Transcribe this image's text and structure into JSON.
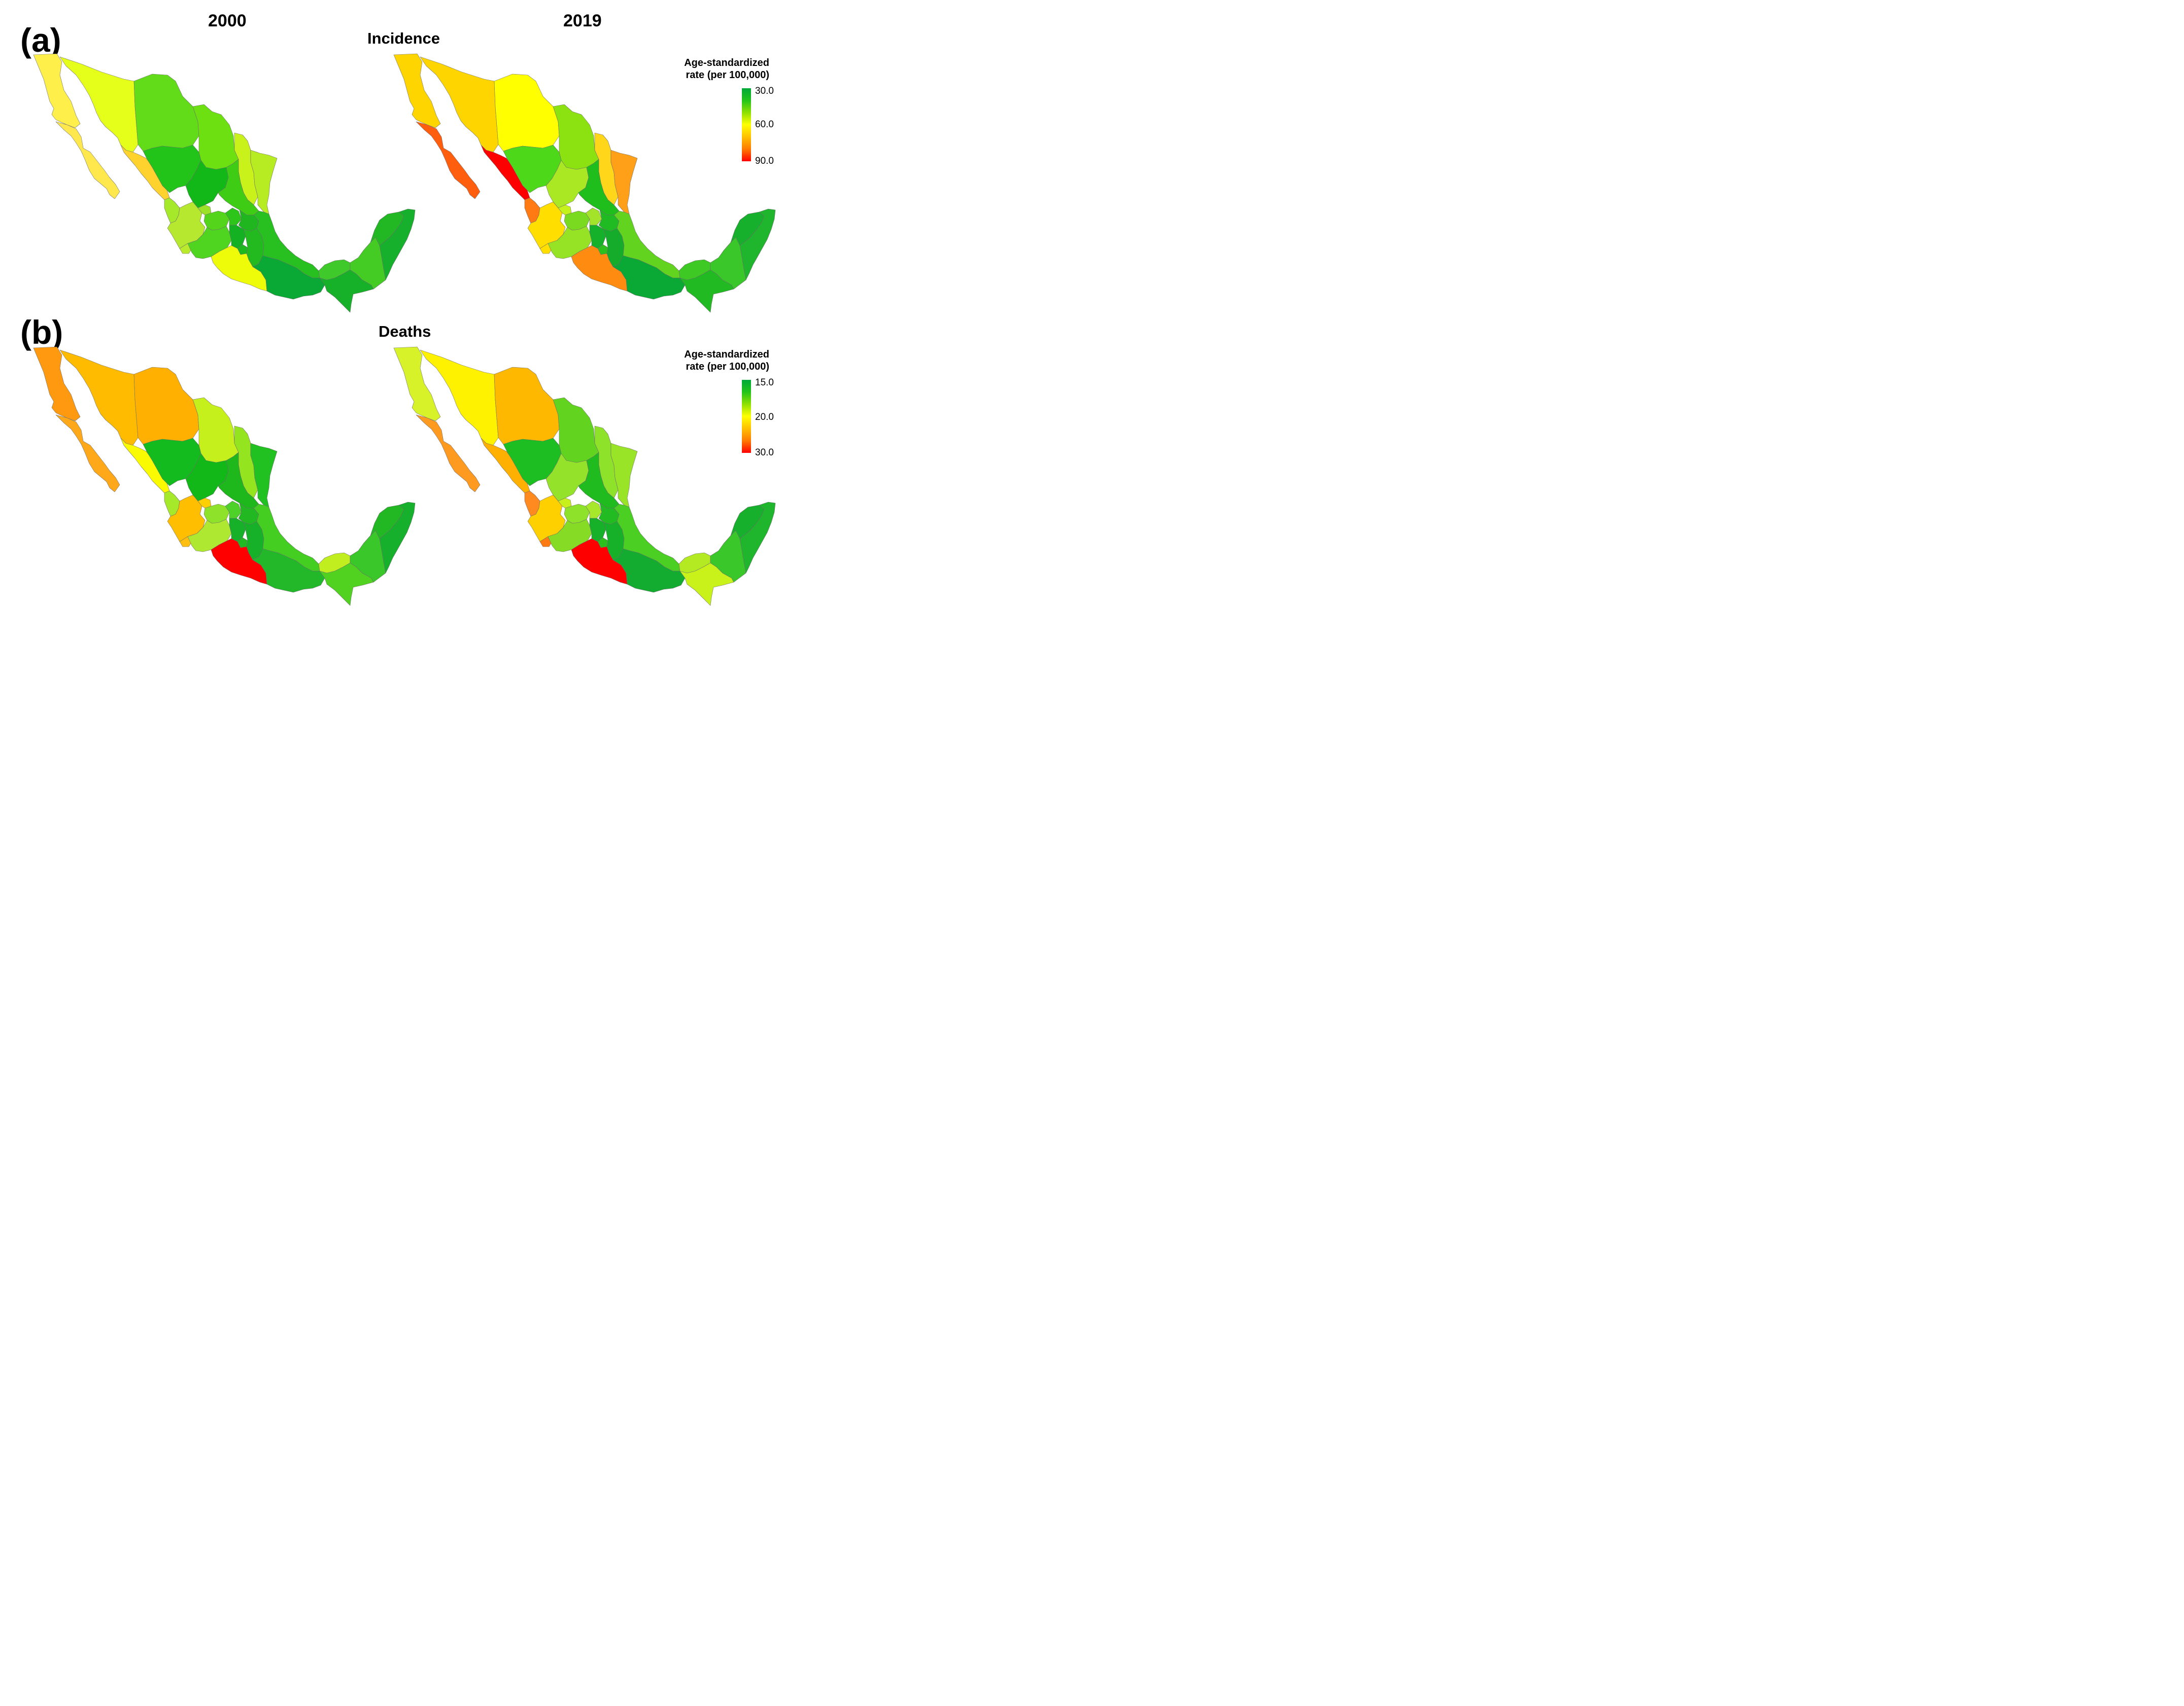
{
  "panels": [
    {
      "label": "(a)",
      "title": "Incidence"
    },
    {
      "label": "(b)",
      "title": "Deaths"
    }
  ],
  "years": [
    "2000",
    "2019"
  ],
  "legends": [
    {
      "title_line1": "Age-standardized",
      "title_line2": "rate (per 100,000)",
      "ticks": [
        "30.0",
        "60.0",
        "90.0"
      ],
      "gradient": [
        "#00a83a",
        "#22c41a",
        "#8ee000",
        "#ffff00",
        "#ffc000",
        "#ff7a00",
        "#ff0000"
      ]
    },
    {
      "title_line1": "Age-standardized",
      "title_line2": "rate (per 100,000)",
      "ticks": [
        "15.0",
        "20.0",
        "30.0"
      ],
      "gradient": [
        "#00a83a",
        "#22c41a",
        "#8ee000",
        "#ffff00",
        "#ffc000",
        "#ff7a00",
        "#ff0000"
      ]
    }
  ],
  "maps": [
    {
      "measure": "Incidence",
      "year": "2000",
      "colors": {
        "baja_california": "#ffef4a",
        "baja_california_sur": "#ffe84d",
        "sonora": "#e6ff1a",
        "chihuahua": "#62dc18",
        "coahuila": "#6ce010",
        "nuevo_leon": "#c8f21a",
        "tamaulipas": "#b8ec22",
        "sinaloa": "#ffd22d",
        "durango": "#22c41a",
        "zacatecas": "#11b817",
        "san_luis_potosi": "#3ecd14",
        "nayarit": "#a6e82a",
        "jalisco": "#b6e830",
        "aguascalientes": "#9de228",
        "guanajuato": "#55d41c",
        "queretaro": "#2ec51a",
        "hidalgo": "#1fb61f",
        "colima": "#b9ea2c",
        "michoacan": "#4fd420",
        "mexico": "#14b222",
        "cdmx": "#e8f900",
        "tlaxcala": "#1fb61f",
        "morelos": "#1db81d",
        "puebla": "#22ba1f",
        "guerrero": "#eefc0a",
        "oaxaca": "#0aa834",
        "veracruz": "#28c020",
        "tabasco": "#3fc92a",
        "chiapas": "#16b128",
        "campeche": "#44cc24",
        "yucatan": "#22b823",
        "quintana_roo": "#16b02c"
      }
    },
    {
      "measure": "Incidence",
      "year": "2019",
      "colors": {
        "baja_california": "#ffd500",
        "baja_california_sur": "#ff5e0f",
        "sonora": "#ffd500",
        "chihuahua": "#ffff00",
        "coahuila": "#8ce210",
        "nuevo_leon": "#ffd61a",
        "tamaulipas": "#ffa018",
        "sinaloa": "#ff0000",
        "durango": "#4ed81a",
        "zacatecas": "#a9e822",
        "san_luis_potosi": "#1fbe1c",
        "nayarit": "#ff7a12",
        "jalisco": "#ffde00",
        "aguascalientes": "#c6f21c",
        "guanajuato": "#7ada20",
        "queretaro": "#a3e42a",
        "hidalgo": "#20ba22",
        "colima": "#ffde00",
        "michoacan": "#96e224",
        "mexico": "#16b12a",
        "cdmx": "#c8f21a",
        "tlaxcala": "#1ab424",
        "morelos": "#2dc01c",
        "puebla": "#14ac2a",
        "guerrero": "#ff8c10",
        "oaxaca": "#0aa834",
        "veracruz": "#62d420",
        "tabasco": "#3ec924",
        "chiapas": "#22ba22",
        "campeche": "#3ac72a",
        "yucatan": "#16b02c",
        "quintana_roo": "#1fb52c"
      }
    },
    {
      "measure": "Deaths",
      "year": "2000",
      "colors": {
        "baja_california": "#ff9a10",
        "baja_california_sur": "#ffa81a",
        "sonora": "#ffbb00",
        "chihuahua": "#ffb000",
        "coahuila": "#c6f01c",
        "nuevo_leon": "#94e420",
        "tamaulipas": "#22c122",
        "sinaloa": "#fbfb00",
        "durango": "#14bb1e",
        "zacatecas": "#11b817",
        "san_luis_potosi": "#1eb81c",
        "nayarit": "#a6e82a",
        "jalisco": "#ffbf00",
        "aguascalientes": "#ffd000",
        "guanajuato": "#8ee22a",
        "queretaro": "#4ed22a",
        "hidalgo": "#22b822",
        "colima": "#ffbe10",
        "michoacan": "#aee830",
        "mexico": "#16b128",
        "cdmx": "#c8f21a",
        "tlaxcala": "#16ac24",
        "morelos": "#22b822",
        "puebla": "#16b128",
        "guerrero": "#ff0000",
        "oaxaca": "#22b82a",
        "veracruz": "#44ce22",
        "tabasco": "#c0ee1e",
        "chiapas": "#52d220",
        "campeche": "#3ac72a",
        "yucatan": "#22b823",
        "quintana_roo": "#16b02c"
      }
    },
    {
      "measure": "Deaths",
      "year": "2019",
      "colors": {
        "baja_california": "#d8f22a",
        "baja_california_sur": "#ff9a20",
        "sonora": "#fff200",
        "chihuahua": "#ffb800",
        "coahuila": "#62d420",
        "nuevo_leon": "#8ee22a",
        "tamaulipas": "#9ae428",
        "sinaloa": "#ffb000",
        "durango": "#1cbe22",
        "zacatecas": "#94e22a",
        "san_luis_potosi": "#1fbb1f",
        "nayarit": "#ff8a20",
        "jalisco": "#ffd000",
        "aguascalientes": "#c8f01c",
        "guanajuato": "#8ee22a",
        "queretaro": "#a8e82a",
        "hidalgo": "#22bb22",
        "colima": "#ff7a12",
        "michoacan": "#86dc24",
        "mexico": "#16b128",
        "cdmx": "#c8f21a",
        "tlaxcala": "#1cb424",
        "morelos": "#2bc01c",
        "puebla": "#16b128",
        "guerrero": "#ff0000",
        "oaxaca": "#14ac30",
        "veracruz": "#4acf22",
        "tabasco": "#b4ea22",
        "chiapas": "#c8f21a",
        "campeche": "#3ac72a",
        "yucatan": "#16b02c",
        "quintana_roo": "#1fb52c"
      }
    }
  ]
}
